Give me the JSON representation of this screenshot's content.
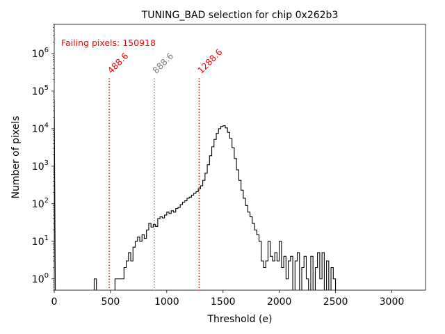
{
  "chart_data": {
    "type": "histogram",
    "title": "TUNING_BAD selection for chip 0x262b3",
    "xlabel": "Threshold (e)",
    "ylabel": "Number of pixels",
    "xlim": [
      0,
      3300
    ],
    "yscale": "log",
    "ylim": [
      0.5,
      6000000
    ],
    "xticks": [
      {
        "value": 0,
        "label": "0"
      },
      {
        "value": 500,
        "label": "500"
      },
      {
        "value": 1000,
        "label": "1000"
      },
      {
        "value": 1500,
        "label": "1500"
      },
      {
        "value": 2000,
        "label": "2000"
      },
      {
        "value": 2500,
        "label": "2500"
      },
      {
        "value": 3000,
        "label": "3000"
      }
    ],
    "yticks": [
      {
        "value": 1,
        "base": "10",
        "exp": "0"
      },
      {
        "value": 10,
        "base": "10",
        "exp": "1"
      },
      {
        "value": 100,
        "base": "10",
        "exp": "2"
      },
      {
        "value": 1000,
        "base": "10",
        "exp": "3"
      },
      {
        "value": 10000,
        "base": "10",
        "exp": "4"
      },
      {
        "value": 100000,
        "base": "10",
        "exp": "5"
      },
      {
        "value": 1000000,
        "base": "10",
        "exp": "6"
      }
    ],
    "annotation": {
      "text": "Failing pixels: 150918",
      "color": "#ff0000"
    },
    "vlines": [
      {
        "x": 488.6,
        "label": "488.6",
        "color": "#ff0000"
      },
      {
        "x": 888.6,
        "label": "888.6",
        "color": "#808080"
      },
      {
        "x": 1288.6,
        "label": "1288.6",
        "color": "#ff0000"
      }
    ],
    "vline_top_value": 220000,
    "histogram": {
      "color": "#000000",
      "points": [
        [
          0,
          60000
        ],
        [
          10,
          0.3
        ],
        [
          355,
          0.3
        ],
        [
          355,
          1
        ],
        [
          375,
          1
        ],
        [
          375,
          0.3
        ],
        [
          540,
          0.3
        ],
        [
          540,
          1
        ],
        [
          620,
          1
        ],
        [
          620,
          2
        ],
        [
          640,
          2
        ],
        [
          640,
          3
        ],
        [
          660,
          3
        ],
        [
          660,
          5
        ],
        [
          680,
          5
        ],
        [
          680,
          3
        ],
        [
          700,
          3
        ],
        [
          700,
          7
        ],
        [
          720,
          7
        ],
        [
          720,
          10
        ],
        [
          740,
          10
        ],
        [
          740,
          13
        ],
        [
          760,
          13
        ],
        [
          760,
          10
        ],
        [
          780,
          10
        ],
        [
          780,
          15
        ],
        [
          800,
          15
        ],
        [
          800,
          12
        ],
        [
          820,
          12
        ],
        [
          820,
          20
        ],
        [
          840,
          20
        ],
        [
          840,
          30
        ],
        [
          860,
          30
        ],
        [
          860,
          24
        ],
        [
          880,
          24
        ],
        [
          880,
          28
        ],
        [
          900,
          28
        ],
        [
          900,
          25
        ],
        [
          920,
          25
        ],
        [
          920,
          40
        ],
        [
          940,
          40
        ],
        [
          940,
          45
        ],
        [
          960,
          45
        ],
        [
          960,
          42
        ],
        [
          980,
          42
        ],
        [
          980,
          50
        ],
        [
          1000,
          50
        ],
        [
          1000,
          60
        ],
        [
          1020,
          60
        ],
        [
          1020,
          55
        ],
        [
          1040,
          55
        ],
        [
          1040,
          65
        ],
        [
          1060,
          65
        ],
        [
          1060,
          60
        ],
        [
          1080,
          60
        ],
        [
          1080,
          75
        ],
        [
          1100,
          75
        ],
        [
          1100,
          80
        ],
        [
          1120,
          80
        ],
        [
          1120,
          95
        ],
        [
          1140,
          95
        ],
        [
          1140,
          110
        ],
        [
          1160,
          110
        ],
        [
          1160,
          120
        ],
        [
          1180,
          120
        ],
        [
          1180,
          140
        ],
        [
          1200,
          140
        ],
        [
          1200,
          150
        ],
        [
          1220,
          150
        ],
        [
          1220,
          170
        ],
        [
          1240,
          170
        ],
        [
          1240,
          190
        ],
        [
          1260,
          190
        ],
        [
          1260,
          210
        ],
        [
          1280,
          210
        ],
        [
          1280,
          250
        ],
        [
          1300,
          250
        ],
        [
          1300,
          300
        ],
        [
          1320,
          300
        ],
        [
          1320,
          420
        ],
        [
          1340,
          420
        ],
        [
          1340,
          650
        ],
        [
          1360,
          650
        ],
        [
          1360,
          1100
        ],
        [
          1380,
          1100
        ],
        [
          1380,
          1900
        ],
        [
          1400,
          1900
        ],
        [
          1400,
          3300
        ],
        [
          1420,
          3300
        ],
        [
          1420,
          5200
        ],
        [
          1440,
          5200
        ],
        [
          1440,
          7500
        ],
        [
          1460,
          7500
        ],
        [
          1460,
          10000
        ],
        [
          1480,
          10000
        ],
        [
          1480,
          11500
        ],
        [
          1500,
          11500
        ],
        [
          1500,
          12000
        ],
        [
          1520,
          12000
        ],
        [
          1520,
          10500
        ],
        [
          1540,
          10500
        ],
        [
          1540,
          8000
        ],
        [
          1560,
          8000
        ],
        [
          1560,
          5500
        ],
        [
          1580,
          5500
        ],
        [
          1580,
          3100
        ],
        [
          1600,
          3100
        ],
        [
          1600,
          1600
        ],
        [
          1620,
          1600
        ],
        [
          1620,
          800
        ],
        [
          1640,
          800
        ],
        [
          1640,
          420
        ],
        [
          1660,
          420
        ],
        [
          1660,
          230
        ],
        [
          1680,
          230
        ],
        [
          1680,
          140
        ],
        [
          1700,
          140
        ],
        [
          1700,
          90
        ],
        [
          1720,
          90
        ],
        [
          1720,
          60
        ],
        [
          1740,
          60
        ],
        [
          1740,
          45
        ],
        [
          1760,
          45
        ],
        [
          1760,
          30
        ],
        [
          1780,
          30
        ],
        [
          1780,
          20
        ],
        [
          1800,
          20
        ],
        [
          1800,
          15
        ],
        [
          1820,
          15
        ],
        [
          1820,
          10
        ],
        [
          1840,
          10
        ],
        [
          1840,
          3
        ],
        [
          1860,
          3
        ],
        [
          1860,
          2
        ],
        [
          1880,
          2
        ],
        [
          1880,
          3
        ],
        [
          1900,
          3
        ],
        [
          1900,
          10
        ],
        [
          1920,
          10
        ],
        [
          1920,
          4
        ],
        [
          1940,
          4
        ],
        [
          1940,
          3
        ],
        [
          1960,
          3
        ],
        [
          1960,
          5
        ],
        [
          1980,
          5
        ],
        [
          1980,
          3
        ],
        [
          2000,
          3
        ],
        [
          2000,
          10
        ],
        [
          2020,
          10
        ],
        [
          2020,
          2
        ],
        [
          2040,
          2
        ],
        [
          2040,
          4
        ],
        [
          2060,
          4
        ],
        [
          2060,
          1
        ],
        [
          2080,
          1
        ],
        [
          2080,
          3
        ],
        [
          2100,
          3
        ],
        [
          2100,
          4
        ],
        [
          2120,
          4
        ],
        [
          2120,
          0.3
        ],
        [
          2140,
          0.3
        ],
        [
          2140,
          3
        ],
        [
          2160,
          3
        ],
        [
          2160,
          5
        ],
        [
          2180,
          5
        ],
        [
          2180,
          0.3
        ],
        [
          2200,
          0.3
        ],
        [
          2200,
          2
        ],
        [
          2220,
          2
        ],
        [
          2220,
          4
        ],
        [
          2240,
          4
        ],
        [
          2240,
          1
        ],
        [
          2260,
          1
        ],
        [
          2260,
          0.3
        ],
        [
          2280,
          0.3
        ],
        [
          2280,
          4
        ],
        [
          2300,
          4
        ],
        [
          2300,
          0.3
        ],
        [
          2320,
          0.3
        ],
        [
          2320,
          2
        ],
        [
          2340,
          2
        ],
        [
          2340,
          5
        ],
        [
          2360,
          5
        ],
        [
          2360,
          1
        ],
        [
          2380,
          1
        ],
        [
          2380,
          5
        ],
        [
          2400,
          5
        ],
        [
          2400,
          0.3
        ],
        [
          2420,
          0.3
        ],
        [
          2420,
          3
        ],
        [
          2440,
          3
        ],
        [
          2440,
          0.3
        ],
        [
          2460,
          0.3
        ],
        [
          2460,
          2
        ],
        [
          2480,
          2
        ],
        [
          2480,
          1
        ],
        [
          2500,
          1
        ],
        [
          2500,
          0.3
        ]
      ]
    }
  }
}
